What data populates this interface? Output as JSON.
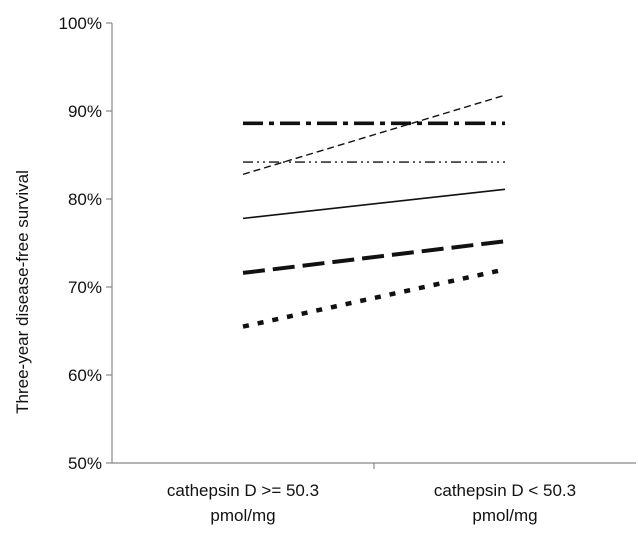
{
  "chart_data": {
    "type": "line",
    "title": "",
    "xlabel": "",
    "ylabel": "Three-year disease-free survival",
    "ylim": [
      50,
      100
    ],
    "y_ticks": [
      "50%",
      "60%",
      "70%",
      "80%",
      "90%",
      "100%"
    ],
    "categories": [
      [
        "cathepsin D >= 50.3",
        "pmol/mg"
      ],
      [
        "cathepsin D < 50.3",
        "pmol/mg"
      ]
    ],
    "grid": false,
    "legend": "none",
    "series": [
      {
        "values": [
          88.6,
          88.6
        ],
        "style": "dash-dot",
        "weight": "heavy"
      },
      {
        "values": [
          82.8,
          91.8
        ],
        "style": "dashed",
        "weight": "thin"
      },
      {
        "values": [
          84.2,
          84.2
        ],
        "style": "dash-dot-dot",
        "weight": "thin"
      },
      {
        "values": [
          77.8,
          81.1
        ],
        "style": "solid",
        "weight": "thin"
      },
      {
        "values": [
          71.6,
          75.2
        ],
        "style": "long-dash",
        "weight": "heavy"
      },
      {
        "values": [
          65.5,
          72.0
        ],
        "style": "dotted",
        "weight": "heavy"
      }
    ],
    "colors": {
      "line": "#111111",
      "axis": "#888888"
    }
  }
}
